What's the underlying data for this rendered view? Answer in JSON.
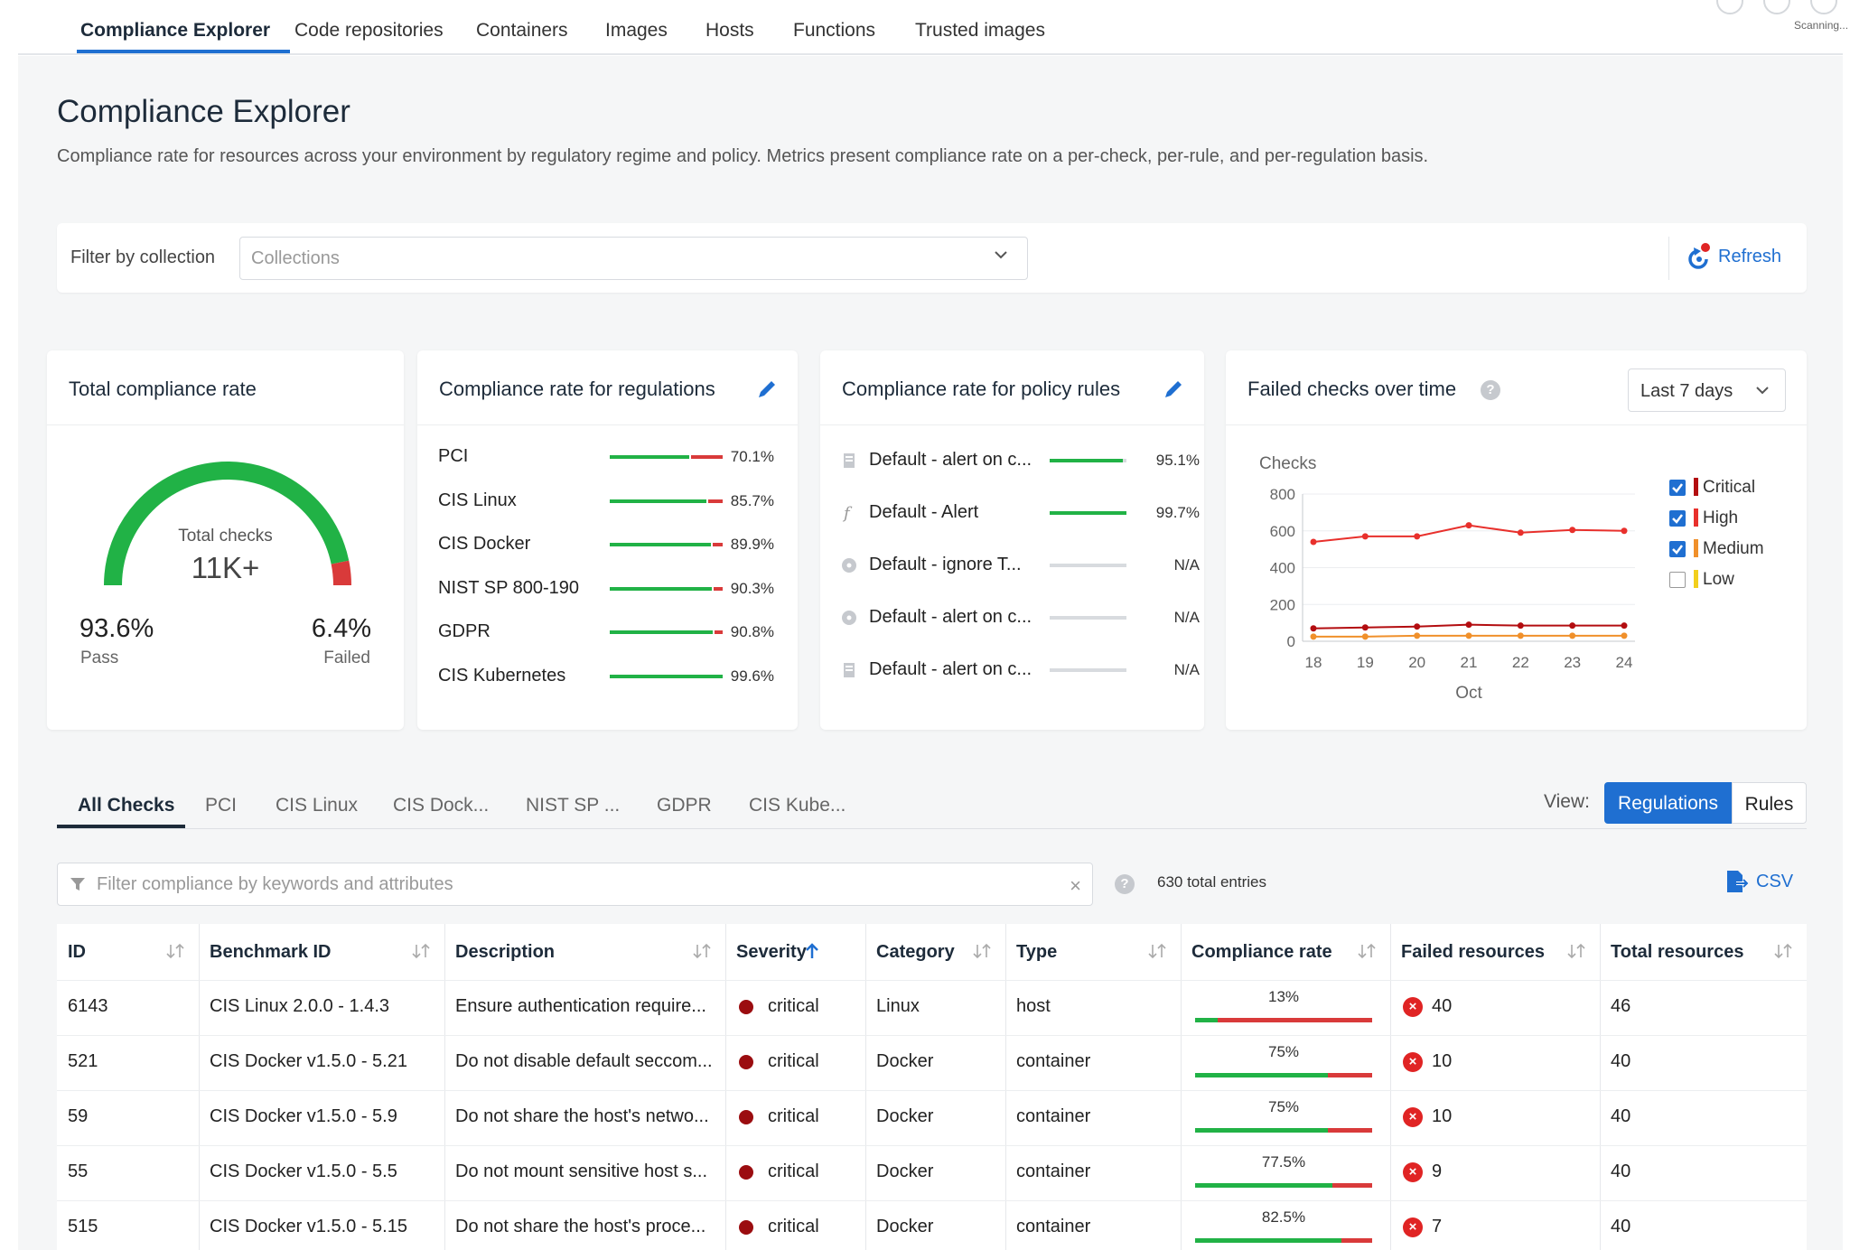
{
  "nav": {
    "tabs": [
      "Compliance Explorer",
      "Code repositories",
      "Containers",
      "Images",
      "Hosts",
      "Functions",
      "Trusted images"
    ],
    "scanning": "Scanning..."
  },
  "page": {
    "title": "Compliance Explorer",
    "description": "Compliance rate for resources across your environment by regulatory regime and policy. Metrics present compliance rate on a per-check, per-rule, and per-regulation basis."
  },
  "filter": {
    "label": "Filter by collection",
    "placeholder": "Collections",
    "refresh_label": "Refresh"
  },
  "total": {
    "title": "Total compliance rate",
    "center_label": "Total checks",
    "center_value": "11K+",
    "pass_value": "93.6%",
    "pass_label": "Pass",
    "fail_value": "6.4%",
    "fail_label": "Failed",
    "pass_fraction": 0.936
  },
  "regulations": {
    "title": "Compliance rate for regulations",
    "items": [
      {
        "name": "PCI",
        "rate": "70.1%",
        "value": 70.1
      },
      {
        "name": "CIS Linux",
        "rate": "85.7%",
        "value": 85.7
      },
      {
        "name": "CIS Docker",
        "rate": "89.9%",
        "value": 89.9
      },
      {
        "name": "NIST SP 800-190",
        "rate": "90.3%",
        "value": 90.3
      },
      {
        "name": "GDPR",
        "rate": "90.8%",
        "value": 90.8
      },
      {
        "name": "CIS Kubernetes",
        "rate": "99.6%",
        "value": 99.6
      }
    ]
  },
  "policy_rules": {
    "title": "Compliance rate for policy rules",
    "items": [
      {
        "name": "Default - alert on c...",
        "rate": "95.1%",
        "value": 95.1,
        "icon": "server-icon"
      },
      {
        "name": "Default - Alert",
        "rate": "99.7%",
        "value": 99.7,
        "icon": "function-icon"
      },
      {
        "name": "Default - ignore T...",
        "rate": "N/A",
        "value": null,
        "icon": "disc-icon"
      },
      {
        "name": "Default - alert on c...",
        "rate": "N/A",
        "value": null,
        "icon": "disc-icon"
      },
      {
        "name": "Default - alert on c...",
        "rate": "N/A",
        "value": null,
        "icon": "server-icon"
      }
    ]
  },
  "failed_checks": {
    "title": "Failed checks over time",
    "range_label": "Last 7 days",
    "legend": [
      {
        "name": "Critical",
        "color": "#b30d10",
        "checked": true
      },
      {
        "name": "High",
        "color": "#e8302c",
        "checked": true
      },
      {
        "name": "Medium",
        "color": "#f0902b",
        "checked": true
      },
      {
        "name": "Low",
        "color": "#f2cf1d",
        "checked": false
      }
    ]
  },
  "chart_data": {
    "type": "line",
    "ylabel": "Checks",
    "xlabel": "Oct",
    "x": [
      "18",
      "19",
      "20",
      "21",
      "22",
      "23",
      "24"
    ],
    "ylim": [
      0,
      800
    ],
    "yticks": [
      "800",
      "600",
      "400",
      "200",
      "0"
    ],
    "series": [
      {
        "name": "High",
        "color": "#e8302c",
        "values": [
          540,
          570,
          570,
          630,
          590,
          605,
          600
        ]
      },
      {
        "name": "Critical",
        "color": "#b30d10",
        "values": [
          70,
          75,
          80,
          90,
          85,
          85,
          85
        ]
      },
      {
        "name": "Medium",
        "color": "#f0902b",
        "values": [
          25,
          25,
          30,
          30,
          30,
          30,
          30
        ]
      }
    ]
  },
  "checks": {
    "tabs": [
      "All Checks",
      "PCI",
      "CIS Linux",
      "CIS Dock...",
      "NIST SP ...",
      "GDPR",
      "CIS Kube..."
    ],
    "view_label": "View:",
    "view_options": [
      "Regulations",
      "Rules"
    ],
    "filter_placeholder": "Filter compliance by keywords and attributes",
    "entries": "630 total entries",
    "csv_label": "CSV",
    "columns": [
      "ID",
      "Benchmark ID",
      "Description",
      "Severity",
      "Category",
      "Type",
      "Compliance rate",
      "Failed resources",
      "Total resources"
    ],
    "rows": [
      {
        "id": "6143",
        "benchmark": "CIS Linux 2.0.0 - 1.4.3",
        "description": "Ensure authentication require...",
        "severity": "critical",
        "category": "Linux",
        "type": "host",
        "rate": "13%",
        "rate_value": 13,
        "failed": "40",
        "total": "46"
      },
      {
        "id": "521",
        "benchmark": "CIS Docker v1.5.0 - 5.21",
        "description": "Do not disable default seccom...",
        "severity": "critical",
        "category": "Docker",
        "type": "container",
        "rate": "75%",
        "rate_value": 75,
        "failed": "10",
        "total": "40"
      },
      {
        "id": "59",
        "benchmark": "CIS Docker v1.5.0 - 5.9",
        "description": "Do not share the host's netwo...",
        "severity": "critical",
        "category": "Docker",
        "type": "container",
        "rate": "75%",
        "rate_value": 75,
        "failed": "10",
        "total": "40"
      },
      {
        "id": "55",
        "benchmark": "CIS Docker v1.5.0 - 5.5",
        "description": "Do not mount sensitive host s...",
        "severity": "critical",
        "category": "Docker",
        "type": "container",
        "rate": "77.5%",
        "rate_value": 77.5,
        "failed": "9",
        "total": "40"
      },
      {
        "id": "515",
        "benchmark": "CIS Docker v1.5.0 - 5.15",
        "description": "Do not share the host's proce...",
        "severity": "critical",
        "category": "Docker",
        "type": "container",
        "rate": "82.5%",
        "rate_value": 82.5,
        "failed": "7",
        "total": "40"
      }
    ]
  }
}
